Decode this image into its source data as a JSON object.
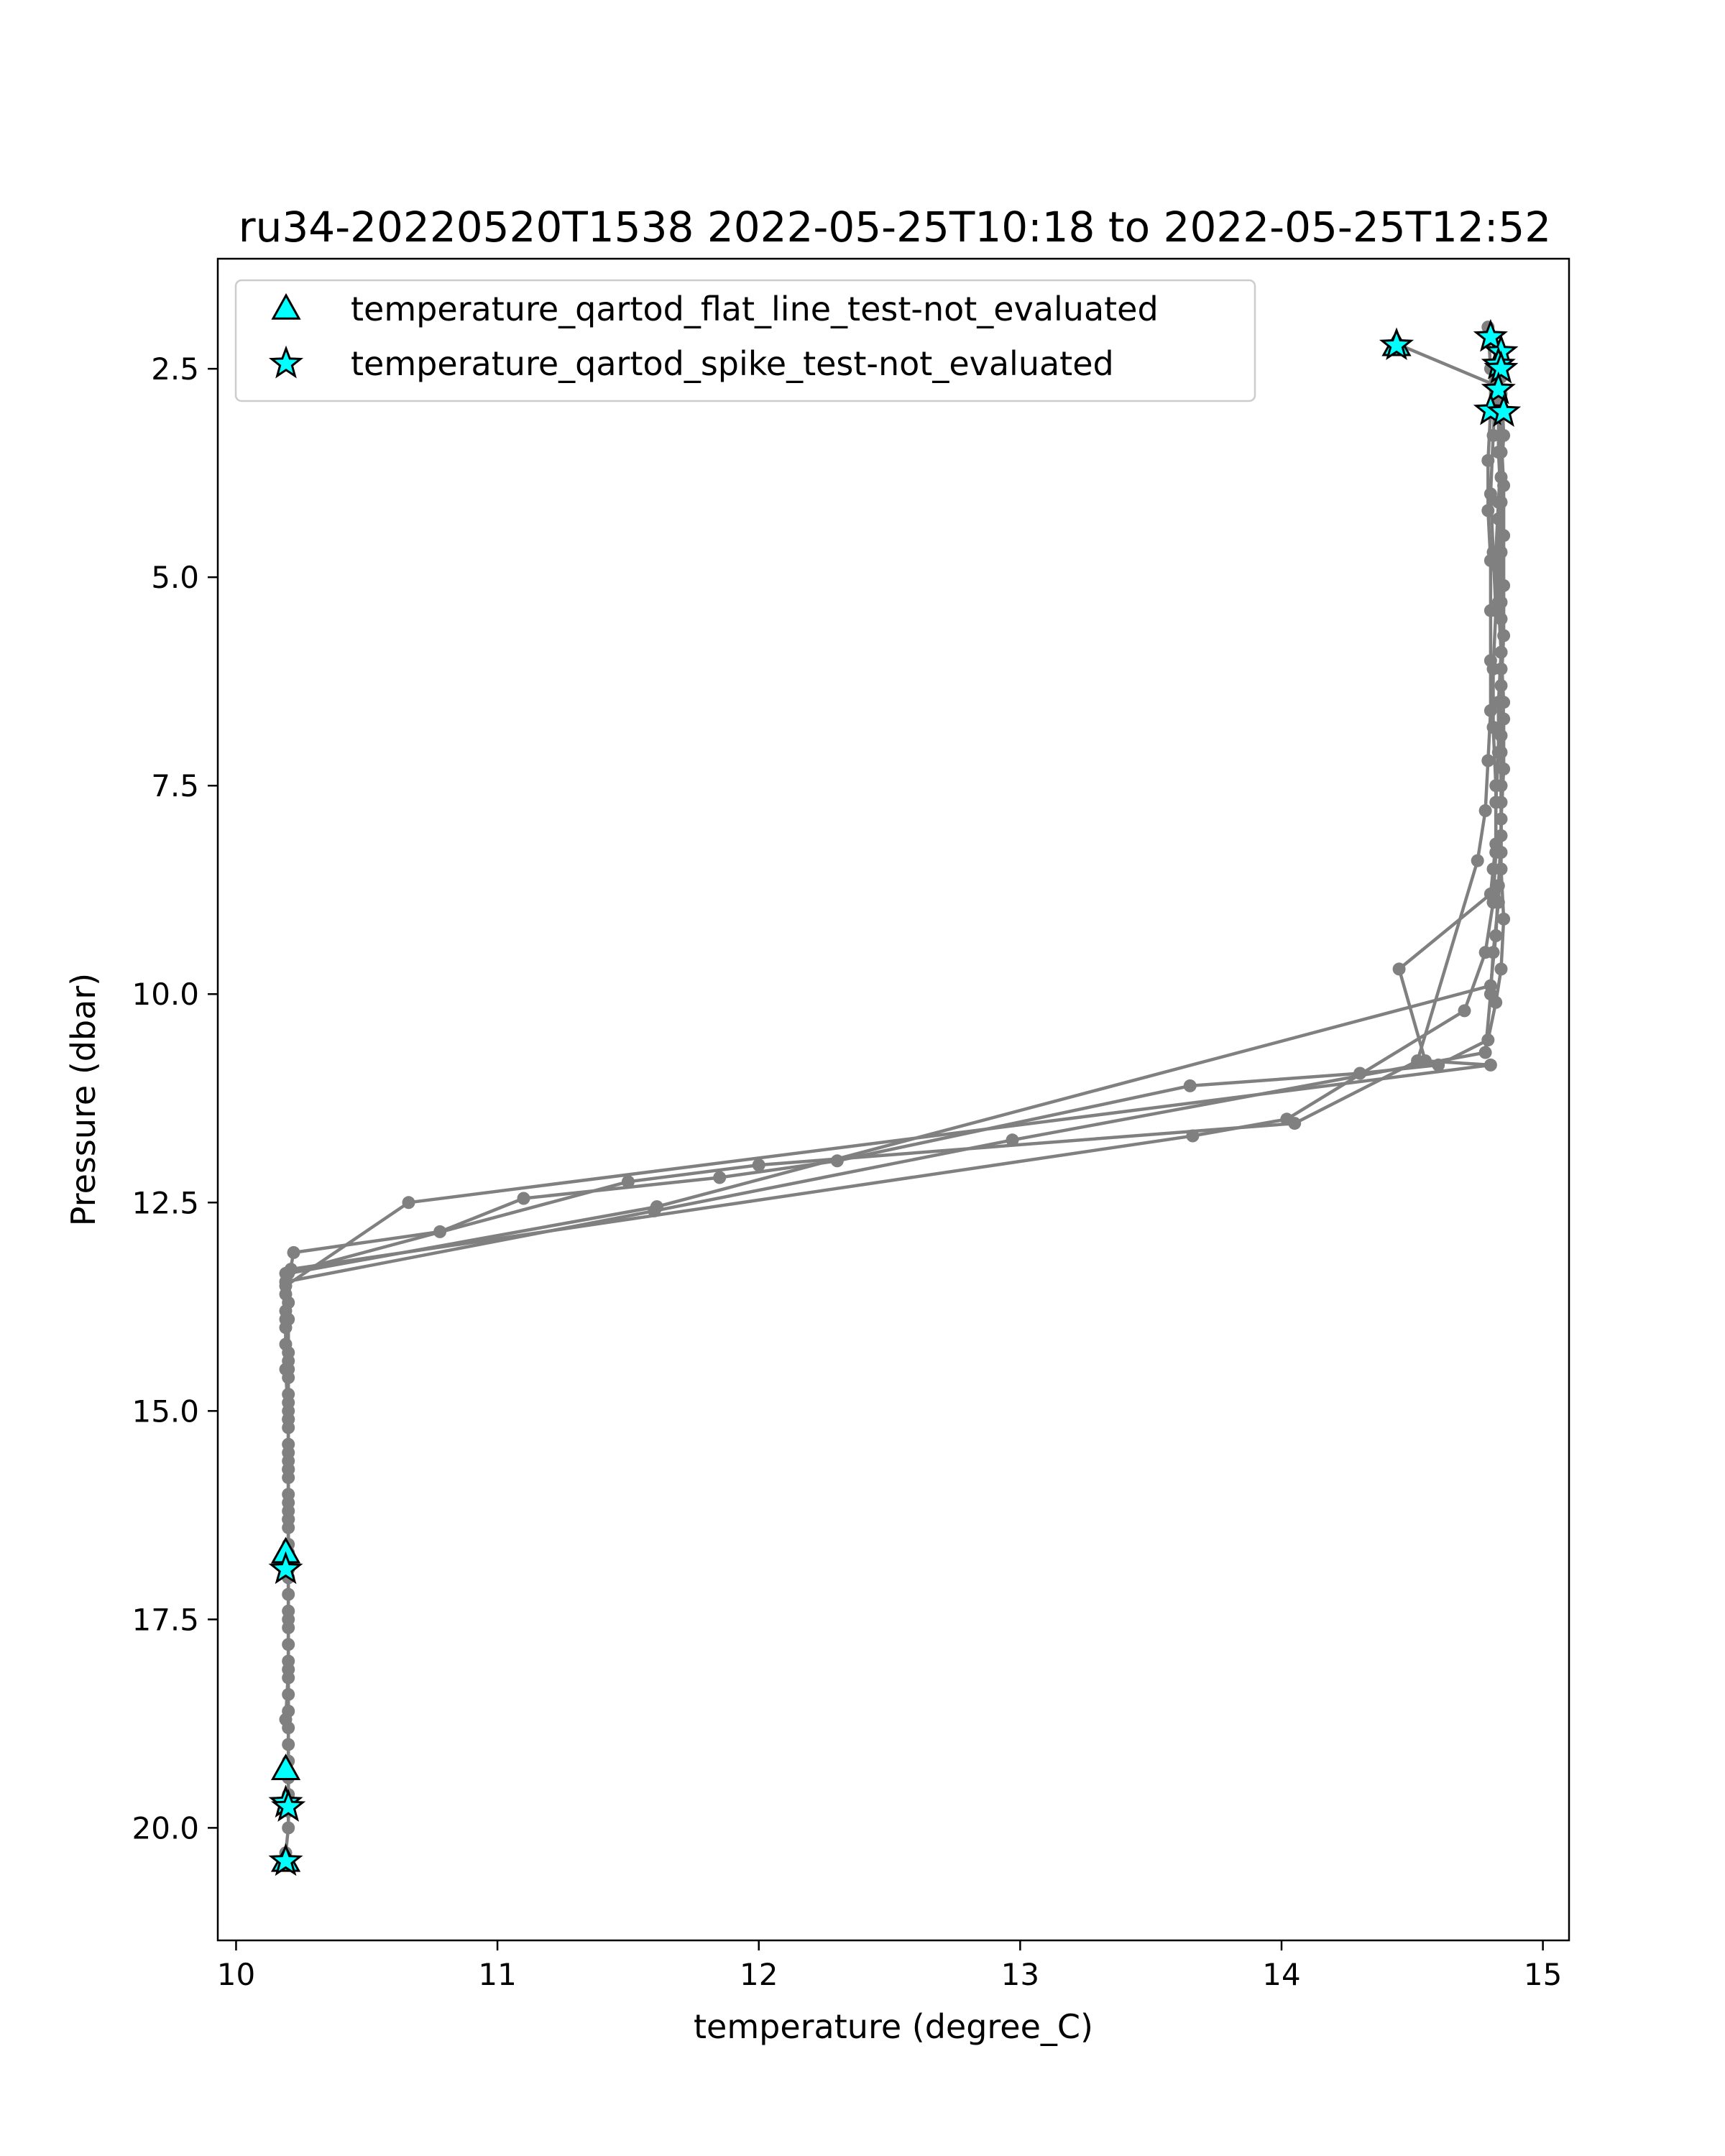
{
  "chart_data": {
    "type": "line",
    "title": "ru34-20220520T1538 2022-05-25T10:18 to 2022-05-25T12:52",
    "xlabel": "temperature (degree_C)",
    "ylabel": "Pressure (dbar)",
    "xlim": [
      9.93,
      15.1
    ],
    "ylim": [
      21.35,
      1.18
    ],
    "y_inverted": true,
    "grid": false,
    "legend_placement": "upper-left",
    "x_ticks": [
      {
        "value": 10,
        "label": "10"
      },
      {
        "value": 11,
        "label": "11"
      },
      {
        "value": 12,
        "label": "12"
      },
      {
        "value": 13,
        "label": "13"
      },
      {
        "value": 14,
        "label": "14"
      },
      {
        "value": 15,
        "label": "15"
      }
    ],
    "y_ticks": [
      {
        "value": 2.5,
        "label": "2.5"
      },
      {
        "value": 5.0,
        "label": "5.0"
      },
      {
        "value": 7.5,
        "label": "7.5"
      },
      {
        "value": 10.0,
        "label": "10.0"
      },
      {
        "value": 12.5,
        "label": "12.5"
      },
      {
        "value": 15.0,
        "label": "15.0"
      },
      {
        "value": 17.5,
        "label": "17.5"
      },
      {
        "value": 20.0,
        "label": "20.0"
      }
    ],
    "colors": {
      "profile_line": "#808080",
      "marker_fill": "#00ffff",
      "marker_edge": "#000000"
    },
    "profiles": [
      {
        "temperature": [
          14.84,
          14.84,
          14.85,
          14.84,
          14.83,
          14.83,
          14.84,
          14.84,
          14.85,
          14.85,
          14.84,
          14.84,
          14.85,
          14.84,
          14.82,
          14.79,
          14.6,
          14.3,
          13.65,
          12.3,
          11.85,
          11.1,
          10.78,
          10.22,
          10.19,
          10.19,
          10.2,
          10.2,
          10.2,
          10.2,
          10.2,
          10.2,
          10.2,
          10.2,
          10.2,
          10.2,
          10.19,
          10.19
        ],
        "pressure": [
          2.3,
          2.6,
          3.3,
          3.8,
          4.3,
          4.9,
          5.5,
          6.1,
          6.7,
          7.3,
          7.9,
          8.5,
          9.1,
          9.7,
          10.1,
          10.55,
          10.85,
          10.95,
          11.1,
          12.0,
          12.2,
          12.45,
          12.85,
          13.1,
          13.6,
          14.2,
          14.8,
          15.4,
          16.0,
          16.6,
          17.2,
          17.8,
          18.4,
          19.0,
          19.6,
          20.0,
          20.3,
          20.4
        ]
      },
      {
        "temperature": [
          14.79,
          14.8,
          14.8,
          14.79,
          14.79,
          14.8,
          14.8,
          14.8,
          14.8,
          14.79,
          14.78,
          14.75,
          14.52,
          14.05,
          12.0,
          11.5,
          10.19,
          10.19,
          10.2,
          10.2,
          10.2,
          10.2,
          10.2,
          10.2,
          10.2,
          10.2,
          10.2,
          10.2,
          10.2
        ],
        "pressure": [
          2.0,
          2.5,
          3.0,
          3.6,
          4.2,
          4.8,
          5.4,
          6.0,
          6.6,
          7.2,
          7.8,
          8.4,
          10.8,
          11.55,
          12.05,
          12.25,
          13.35,
          13.8,
          14.4,
          15.0,
          15.6,
          16.2,
          16.8,
          17.4,
          18.0,
          18.6,
          19.2,
          19.7,
          19.8
        ]
      },
      {
        "temperature": [
          14.85,
          14.84,
          14.83,
          14.82,
          14.83,
          14.84,
          14.85,
          14.84,
          14.84,
          14.84,
          14.83,
          14.81,
          14.8,
          14.78,
          12.97,
          11.6,
          10.19,
          10.19,
          10.2,
          10.2,
          10.2,
          10.2,
          10.2,
          10.2,
          10.2,
          10.2,
          10.2,
          10.2,
          10.2,
          10.19
        ],
        "pressure": [
          3.0,
          3.5,
          4.1,
          4.7,
          5.3,
          5.9,
          6.5,
          7.1,
          7.7,
          8.3,
          8.9,
          9.5,
          10.0,
          10.7,
          11.75,
          12.6,
          13.45,
          14.0,
          14.6,
          15.2,
          15.8,
          16.4,
          17.0,
          17.6,
          18.2,
          18.8,
          19.4,
          19.7,
          19.8,
          19.75
        ]
      },
      {
        "temperature": [
          14.44,
          14.82,
          14.81,
          14.8,
          14.81,
          14.82,
          14.81,
          14.81,
          14.82,
          14.82,
          14.81,
          14.8,
          14.45,
          14.55,
          14.8,
          10.66,
          10.19,
          10.19,
          10.19,
          10.2,
          10.2,
          10.2,
          10.2,
          10.2,
          10.2,
          10.2,
          10.19
        ],
        "pressure": [
          2.2,
          2.7,
          3.3,
          4.0,
          4.7,
          5.4,
          6.1,
          6.8,
          7.5,
          8.2,
          8.5,
          8.8,
          9.7,
          10.8,
          10.85,
          12.5,
          13.5,
          13.9,
          14.5,
          15.1,
          15.7,
          16.3,
          16.7,
          16.9,
          17.5,
          18.1,
          18.7
        ]
      },
      {
        "temperature": [
          14.83,
          14.83,
          14.83,
          14.84,
          14.84,
          14.84,
          14.84,
          14.83,
          14.83,
          14.82,
          14.82,
          14.81,
          14.78,
          14.7,
          14.02,
          13.66,
          10.21,
          10.2,
          10.2,
          10.2,
          10.2,
          10.2,
          10.2
        ],
        "pressure": [
          2.4,
          2.9,
          3.5,
          4.1,
          4.7,
          5.3,
          5.9,
          6.5,
          7.1,
          7.7,
          8.3,
          8.9,
          9.5,
          10.2,
          11.5,
          11.7,
          13.3,
          13.7,
          14.3,
          14.9,
          15.5,
          16.1,
          16.9
        ]
      },
      {
        "temperature": [
          14.84,
          14.84,
          14.84,
          14.85,
          14.85,
          14.85,
          14.85,
          14.84,
          14.84,
          14.84,
          14.84,
          14.83,
          14.82,
          14.8,
          11.61,
          10.2,
          10.2,
          10.2,
          10.2,
          10.2,
          10.2,
          10.2,
          10.2
        ],
        "pressure": [
          2.3,
          2.8,
          3.3,
          3.9,
          4.5,
          5.1,
          5.7,
          6.3,
          6.9,
          7.5,
          8.1,
          8.7,
          9.3,
          9.9,
          12.55,
          13.35,
          13.9,
          14.5,
          15.1,
          15.7,
          16.3,
          16.8,
          17.0
        ]
      }
    ],
    "series": [
      {
        "name": "temperature_qartod_flat_line_test-not_evaluated",
        "marker": "triangle",
        "points": [
          {
            "x": 14.44,
            "y": 2.22
          },
          {
            "x": 10.19,
            "y": 16.7
          },
          {
            "x": 10.19,
            "y": 19.3
          },
          {
            "x": 10.19,
            "y": 20.4
          }
        ]
      },
      {
        "name": "temperature_qartod_spike_test-not_evaluated",
        "marker": "star",
        "points": [
          {
            "x": 14.44,
            "y": 2.22
          },
          {
            "x": 14.8,
            "y": 2.12
          },
          {
            "x": 14.84,
            "y": 2.3
          },
          {
            "x": 14.83,
            "y": 2.45
          },
          {
            "x": 14.84,
            "y": 2.5
          },
          {
            "x": 14.83,
            "y": 2.75
          },
          {
            "x": 14.8,
            "y": 3.0
          },
          {
            "x": 14.85,
            "y": 3.02
          },
          {
            "x": 10.19,
            "y": 16.9
          },
          {
            "x": 10.19,
            "y": 19.7
          },
          {
            "x": 10.2,
            "y": 19.75
          },
          {
            "x": 10.19,
            "y": 20.4
          }
        ]
      }
    ]
  }
}
